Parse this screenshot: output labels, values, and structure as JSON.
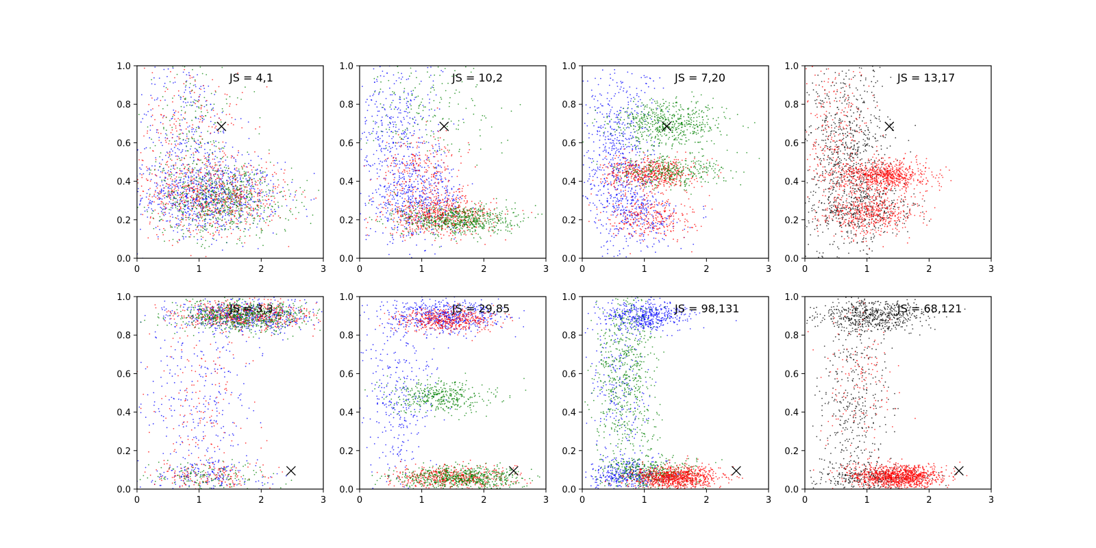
{
  "chart_data": {
    "type": "scatter",
    "grid": false,
    "legend": "none",
    "series_colors": {
      "blue": "#0000ff",
      "red": "#ff0000",
      "green": "#008000",
      "black": "#000000"
    },
    "marker_color": "#000000",
    "panels": [
      {
        "annotation": "JS = 4,1",
        "xlim": [
          0,
          3
        ],
        "ylim": [
          0,
          1
        ],
        "xticks": [
          "0",
          "1",
          "2",
          "3"
        ],
        "yticks": [
          "0.0",
          "0.2",
          "0.4",
          "0.6",
          "0.8",
          "1.0"
        ],
        "marker": {
          "x": 1.36,
          "y": 0.685
        },
        "series": [
          {
            "color": "blue",
            "clusters": [
              {
                "cx": 1.2,
                "cy": 0.32,
                "sx": 0.55,
                "sy": 0.09,
                "n": 700
              },
              {
                "cx": 0.8,
                "cy": 0.55,
                "sx": 0.45,
                "sy": 0.25,
                "n": 400
              }
            ]
          },
          {
            "color": "red",
            "clusters": [
              {
                "cx": 1.3,
                "cy": 0.32,
                "sx": 0.55,
                "sy": 0.09,
                "n": 600
              },
              {
                "cx": 0.8,
                "cy": 0.6,
                "sx": 0.45,
                "sy": 0.25,
                "n": 300
              }
            ]
          },
          {
            "color": "green",
            "clusters": [
              {
                "cx": 1.4,
                "cy": 0.3,
                "sx": 0.55,
                "sy": 0.09,
                "n": 600
              },
              {
                "cx": 0.9,
                "cy": 0.6,
                "sx": 0.45,
                "sy": 0.25,
                "n": 250
              }
            ]
          }
        ]
      },
      {
        "annotation": "JS = 10,2",
        "xlim": [
          0,
          3
        ],
        "ylim": [
          0,
          1
        ],
        "xticks": [
          "0",
          "1",
          "2",
          "3"
        ],
        "yticks": [
          "0.0",
          "0.2",
          "0.4",
          "0.6",
          "0.8",
          "1.0"
        ],
        "marker": {
          "x": 1.36,
          "y": 0.685
        },
        "series": [
          {
            "color": "blue",
            "clusters": [
              {
                "cx": 0.9,
                "cy": 0.3,
                "sx": 0.4,
                "sy": 0.1,
                "n": 500
              },
              {
                "cx": 0.6,
                "cy": 0.65,
                "sx": 0.35,
                "sy": 0.2,
                "n": 400
              }
            ]
          },
          {
            "color": "red",
            "clusters": [
              {
                "cx": 1.3,
                "cy": 0.22,
                "sx": 0.45,
                "sy": 0.05,
                "n": 600
              },
              {
                "cx": 1.0,
                "cy": 0.45,
                "sx": 0.35,
                "sy": 0.1,
                "n": 250
              }
            ]
          },
          {
            "color": "green",
            "clusters": [
              {
                "cx": 1.6,
                "cy": 0.2,
                "sx": 0.45,
                "sy": 0.04,
                "n": 650
              },
              {
                "cx": 1.0,
                "cy": 0.8,
                "sx": 0.6,
                "sy": 0.15,
                "n": 200
              }
            ]
          }
        ]
      },
      {
        "annotation": "JS = 7,20",
        "xlim": [
          0,
          3
        ],
        "ylim": [
          0,
          1
        ],
        "xticks": [
          "0",
          "1",
          "2",
          "3"
        ],
        "yticks": [
          "0.0",
          "0.2",
          "0.4",
          "0.6",
          "0.8",
          "1.0"
        ],
        "marker": {
          "x": 1.36,
          "y": 0.685
        },
        "series": [
          {
            "color": "blue",
            "clusters": [
              {
                "cx": 0.6,
                "cy": 0.5,
                "sx": 0.3,
                "sy": 0.25,
                "n": 700
              },
              {
                "cx": 1.0,
                "cy": 0.22,
                "sx": 0.3,
                "sy": 0.07,
                "n": 200
              }
            ]
          },
          {
            "color": "red",
            "clusters": [
              {
                "cx": 1.1,
                "cy": 0.44,
                "sx": 0.35,
                "sy": 0.04,
                "n": 550
              },
              {
                "cx": 1.1,
                "cy": 0.22,
                "sx": 0.35,
                "sy": 0.06,
                "n": 300
              }
            ]
          },
          {
            "color": "green",
            "clusters": [
              {
                "cx": 1.4,
                "cy": 0.7,
                "sx": 0.45,
                "sy": 0.06,
                "n": 600
              },
              {
                "cx": 1.4,
                "cy": 0.45,
                "sx": 0.45,
                "sy": 0.04,
                "n": 350
              }
            ]
          }
        ]
      },
      {
        "annotation": "JS = 13,17",
        "xlim": [
          0,
          3
        ],
        "ylim": [
          0,
          1
        ],
        "xticks": [
          "0",
          "1",
          "2",
          "3"
        ],
        "yticks": [
          "0.0",
          "0.2",
          "0.4",
          "0.6",
          "0.8",
          "1.0"
        ],
        "marker": {
          "x": 1.36,
          "y": 0.685
        },
        "series": [
          {
            "color": "black",
            "clusters": [
              {
                "cx": 0.7,
                "cy": 0.5,
                "sx": 0.35,
                "sy": 0.25,
                "n": 900
              },
              {
                "cx": 1.0,
                "cy": 0.25,
                "sx": 0.4,
                "sy": 0.06,
                "n": 250
              }
            ]
          },
          {
            "color": "red",
            "clusters": [
              {
                "cx": 1.3,
                "cy": 0.43,
                "sx": 0.35,
                "sy": 0.04,
                "n": 750
              },
              {
                "cx": 1.1,
                "cy": 0.23,
                "sx": 0.35,
                "sy": 0.05,
                "n": 450
              },
              {
                "cx": 0.5,
                "cy": 0.6,
                "sx": 0.3,
                "sy": 0.25,
                "n": 300
              }
            ]
          }
        ]
      },
      {
        "annotation": "JS = 3,3",
        "xlim": [
          0,
          3
        ],
        "ylim": [
          0,
          1
        ],
        "xticks": [
          "0",
          "1",
          "2",
          "3"
        ],
        "yticks": [
          "0.0",
          "0.2",
          "0.4",
          "0.6",
          "0.8",
          "1.0"
        ],
        "marker": {
          "x": 2.48,
          "y": 0.095
        },
        "series": [
          {
            "color": "blue",
            "clusters": [
              {
                "cx": 1.7,
                "cy": 0.9,
                "sx": 0.55,
                "sy": 0.04,
                "n": 600
              },
              {
                "cx": 1.0,
                "cy": 0.45,
                "sx": 0.45,
                "sy": 0.25,
                "n": 300
              },
              {
                "cx": 1.2,
                "cy": 0.07,
                "sx": 0.5,
                "sy": 0.04,
                "n": 150
              }
            ]
          },
          {
            "color": "red",
            "clusters": [
              {
                "cx": 1.7,
                "cy": 0.9,
                "sx": 0.55,
                "sy": 0.04,
                "n": 550
              },
              {
                "cx": 1.0,
                "cy": 0.4,
                "sx": 0.45,
                "sy": 0.25,
                "n": 150
              },
              {
                "cx": 1.2,
                "cy": 0.06,
                "sx": 0.5,
                "sy": 0.04,
                "n": 150
              }
            ]
          },
          {
            "color": "green",
            "clusters": [
              {
                "cx": 1.7,
                "cy": 0.9,
                "sx": 0.55,
                "sy": 0.04,
                "n": 700
              },
              {
                "cx": 1.2,
                "cy": 0.06,
                "sx": 0.5,
                "sy": 0.04,
                "n": 150
              }
            ]
          }
        ]
      },
      {
        "annotation": "JS = 29,85",
        "xlim": [
          0,
          3
        ],
        "ylim": [
          0,
          1
        ],
        "xticks": [
          "0",
          "1",
          "2",
          "3"
        ],
        "yticks": [
          "0.0",
          "0.2",
          "0.4",
          "0.6",
          "0.8",
          "1.0"
        ],
        "marker": {
          "x": 2.48,
          "y": 0.095
        },
        "series": [
          {
            "color": "blue",
            "clusters": [
              {
                "cx": 1.4,
                "cy": 0.9,
                "sx": 0.45,
                "sy": 0.04,
                "n": 550
              },
              {
                "cx": 0.6,
                "cy": 0.5,
                "sx": 0.3,
                "sy": 0.25,
                "n": 350
              }
            ]
          },
          {
            "color": "red",
            "clusters": [
              {
                "cx": 1.4,
                "cy": 0.88,
                "sx": 0.4,
                "sy": 0.03,
                "n": 450
              },
              {
                "cx": 1.5,
                "cy": 0.06,
                "sx": 0.5,
                "sy": 0.03,
                "n": 500
              }
            ]
          },
          {
            "color": "green",
            "clusters": [
              {
                "cx": 1.3,
                "cy": 0.48,
                "sx": 0.4,
                "sy": 0.04,
                "n": 400
              },
              {
                "cx": 1.6,
                "cy": 0.06,
                "sx": 0.5,
                "sy": 0.03,
                "n": 650
              }
            ]
          }
        ]
      },
      {
        "annotation": "JS = 98,131",
        "xlim": [
          0,
          3
        ],
        "ylim": [
          0,
          1
        ],
        "xticks": [
          "0",
          "1",
          "2",
          "3"
        ],
        "yticks": [
          "0.0",
          "0.2",
          "0.4",
          "0.6",
          "0.8",
          "1.0"
        ],
        "marker": {
          "x": 2.48,
          "y": 0.095
        },
        "series": [
          {
            "color": "blue",
            "clusters": [
              {
                "cx": 1.0,
                "cy": 0.9,
                "sx": 0.35,
                "sy": 0.04,
                "n": 500
              },
              {
                "cx": 0.7,
                "cy": 0.07,
                "sx": 0.3,
                "sy": 0.04,
                "n": 350
              },
              {
                "cx": 0.6,
                "cy": 0.5,
                "sx": 0.25,
                "sy": 0.25,
                "n": 250
              }
            ]
          },
          {
            "color": "green",
            "clusters": [
              {
                "cx": 0.7,
                "cy": 0.55,
                "sx": 0.25,
                "sy": 0.28,
                "n": 700
              },
              {
                "cx": 1.1,
                "cy": 0.08,
                "sx": 0.35,
                "sy": 0.04,
                "n": 400
              }
            ]
          },
          {
            "color": "red",
            "clusters": [
              {
                "cx": 1.5,
                "cy": 0.06,
                "sx": 0.35,
                "sy": 0.03,
                "n": 900
              }
            ]
          }
        ]
      },
      {
        "annotation": "JS = 68,121",
        "xlim": [
          0,
          3
        ],
        "ylim": [
          0,
          1
        ],
        "xticks": [
          "0",
          "1",
          "2",
          "3"
        ],
        "yticks": [
          "0.0",
          "0.2",
          "0.4",
          "0.6",
          "0.8",
          "1.0"
        ],
        "marker": {
          "x": 2.48,
          "y": 0.095
        },
        "series": [
          {
            "color": "black",
            "clusters": [
              {
                "cx": 1.1,
                "cy": 0.9,
                "sx": 0.4,
                "sy": 0.04,
                "n": 600
              },
              {
                "cx": 0.8,
                "cy": 0.5,
                "sx": 0.3,
                "sy": 0.25,
                "n": 400
              },
              {
                "cx": 1.0,
                "cy": 0.06,
                "sx": 0.45,
                "sy": 0.04,
                "n": 300
              }
            ]
          },
          {
            "color": "red",
            "clusters": [
              {
                "cx": 1.5,
                "cy": 0.065,
                "sx": 0.35,
                "sy": 0.03,
                "n": 1100
              },
              {
                "cx": 0.9,
                "cy": 0.6,
                "sx": 0.3,
                "sy": 0.25,
                "n": 150
              }
            ]
          }
        ]
      }
    ]
  }
}
